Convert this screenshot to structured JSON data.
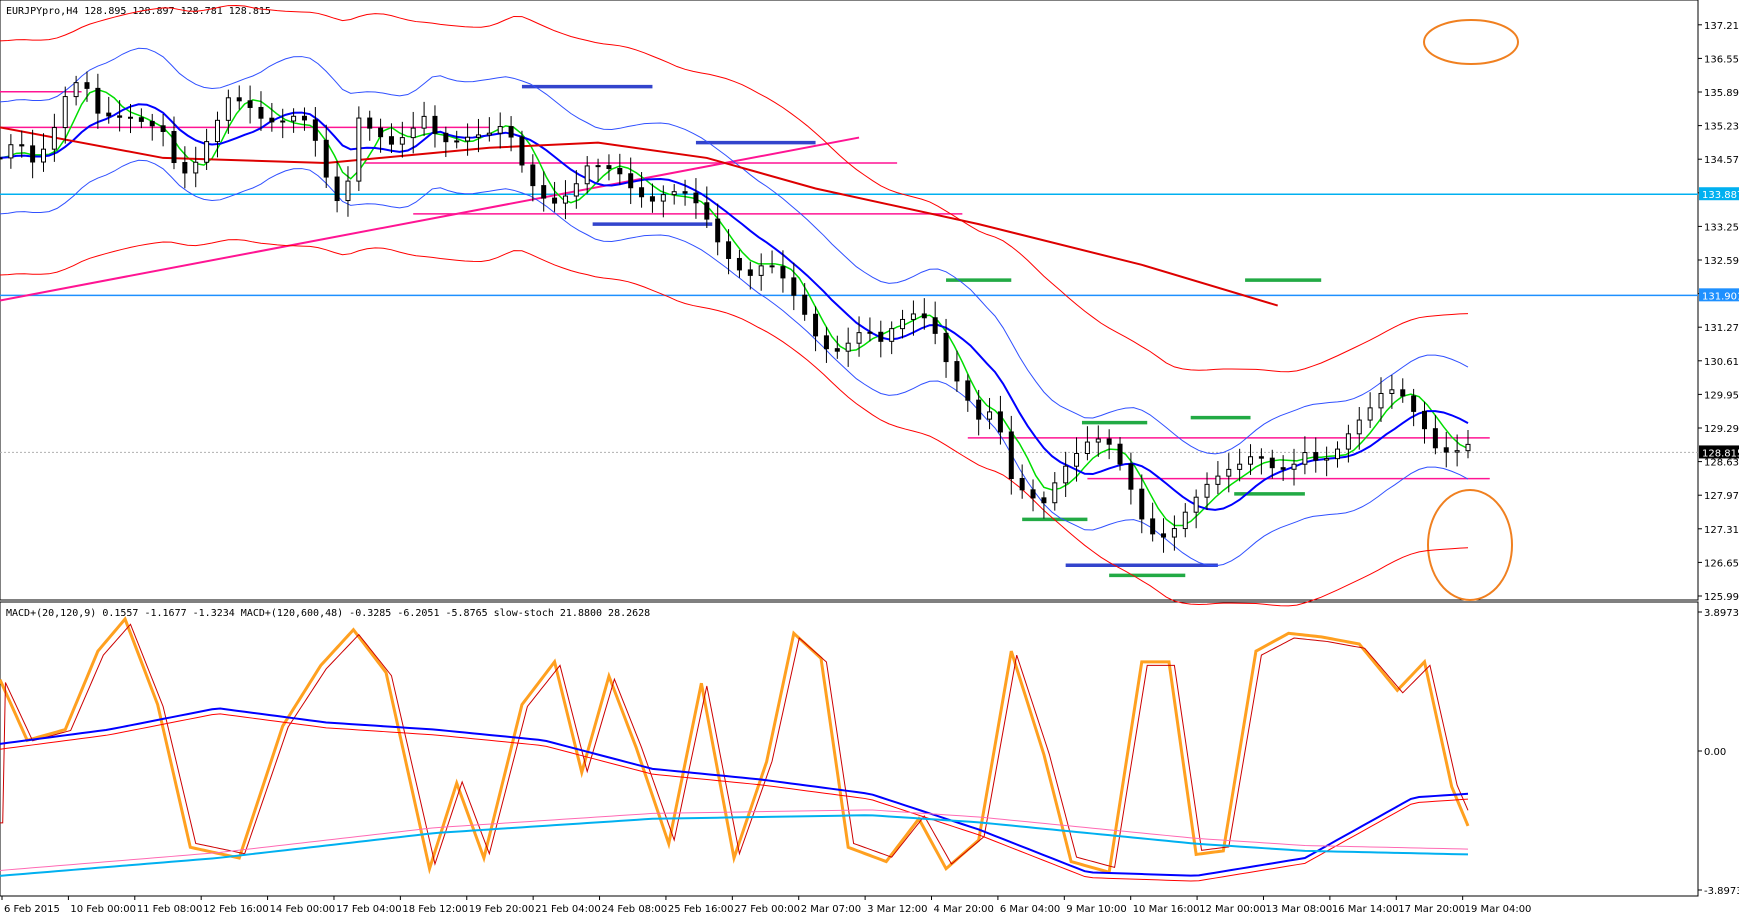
{
  "chart_data": {
    "type": "candlestick",
    "symbol_header": "EURJPYpro,H4  128.895 128.897 128.781 128.815",
    "price_axis": {
      "ylim": [
        125.995,
        137.545
      ],
      "ticks": [
        "137.215",
        "136.555",
        "135.895",
        "135.235",
        "134.575",
        "133.915",
        "133.255",
        "132.595",
        "131.935",
        "131.275",
        "130.615",
        "129.955",
        "129.295",
        "128.635",
        "127.975",
        "127.315",
        "126.655",
        "125.995"
      ],
      "current_price_label": "128.815",
      "hline_labels": [
        {
          "value": 133.887,
          "label": "133.887",
          "color": "#00b0f0"
        },
        {
          "value": 131.901,
          "label": "131.901",
          "color": "#1e90ff"
        }
      ]
    },
    "time_axis": {
      "labels": [
        "6 Feb 2015",
        "10 Feb 00:00",
        "11 Feb 08:00",
        "12 Feb 16:00",
        "14 Feb 00:00",
        "17 Feb 04:00",
        "18 Feb 12:00",
        "19 Feb 20:00",
        "21 Feb 04:00",
        "24 Feb 08:00",
        "25 Feb 16:00",
        "27 Feb 00:00",
        "2 Mar 07:00",
        "3 Mar 12:00",
        "4 Mar 20:00",
        "6 Mar 04:00",
        "9 Mar 10:00",
        "10 Mar 16:00",
        "12 Mar 00:00",
        "13 Mar 08:00",
        "16 Mar 14:00",
        "17 Mar 20:00",
        "19 Mar 04:00"
      ]
    },
    "price_path": [
      [
        0,
        134.6
      ],
      [
        6,
        134.9
      ],
      [
        12,
        134.4
      ],
      [
        18,
        134.8
      ],
      [
        24,
        135.8
      ],
      [
        30,
        136.3
      ],
      [
        36,
        135.6
      ],
      [
        42,
        135.5
      ],
      [
        48,
        135.4
      ],
      [
        54,
        135.2
      ],
      [
        60,
        135.0
      ],
      [
        66,
        134.1
      ],
      [
        72,
        134.5
      ],
      [
        78,
        135.2
      ],
      [
        84,
        135.9
      ],
      [
        90,
        135.8
      ],
      [
        96,
        135.4
      ],
      [
        102,
        135.2
      ],
      [
        108,
        135.3
      ],
      [
        114,
        135.2
      ],
      [
        120,
        134.2
      ],
      [
        126,
        133.6
      ],
      [
        132,
        135.5
      ],
      [
        138,
        135.2
      ],
      [
        144,
        134.9
      ],
      [
        150,
        135.0
      ],
      [
        156,
        135.3
      ],
      [
        162,
        134.8
      ],
      [
        168,
        134.9
      ],
      [
        174,
        135.1
      ],
      [
        180,
        135.2
      ],
      [
        186,
        135.4
      ],
      [
        192,
        134.5
      ],
      [
        198,
        133.8
      ],
      [
        204,
        133.6
      ],
      [
        210,
        133.8
      ],
      [
        216,
        134.4
      ],
      [
        222,
        134.5
      ],
      [
        228,
        134.4
      ],
      [
        234,
        134.0
      ],
      [
        240,
        133.8
      ],
      [
        246,
        133.9
      ],
      [
        252,
        133.8
      ],
      [
        258,
        133.5
      ],
      [
        264,
        132.9
      ],
      [
        270,
        132.5
      ],
      [
        276,
        132.4
      ],
      [
        282,
        132.7
      ],
      [
        288,
        132.3
      ],
      [
        294,
        131.7
      ],
      [
        300,
        131.0
      ],
      [
        306,
        130.6
      ],
      [
        312,
        130.9
      ],
      [
        318,
        131.3
      ],
      [
        324,
        131.1
      ],
      [
        330,
        131.5
      ],
      [
        336,
        131.6
      ],
      [
        342,
        131.4
      ],
      [
        348,
        130.5
      ],
      [
        354,
        129.9
      ],
      [
        360,
        129.4
      ],
      [
        366,
        129.7
      ],
      [
        372,
        128.4
      ],
      [
        378,
        128.1
      ],
      [
        384,
        127.9
      ],
      [
        390,
        128.4
      ],
      [
        396,
        128.7
      ],
      [
        402,
        129.0
      ],
      [
        408,
        128.9
      ],
      [
        414,
        128.4
      ],
      [
        420,
        127.6
      ],
      [
        426,
        127.2
      ],
      [
        432,
        127.4
      ],
      [
        438,
        127.8
      ],
      [
        444,
        128.1
      ],
      [
        450,
        128.3
      ],
      [
        456,
        128.5
      ],
      [
        462,
        128.8
      ],
      [
        468,
        128.6
      ],
      [
        474,
        128.6
      ],
      [
        480,
        128.9
      ],
      [
        486,
        128.6
      ],
      [
        492,
        128.8
      ],
      [
        498,
        129.2
      ],
      [
        504,
        129.6
      ],
      [
        510,
        130.1
      ],
      [
        516,
        130.0
      ],
      [
        522,
        129.6
      ],
      [
        528,
        129.0
      ],
      [
        534,
        128.8
      ],
      [
        540,
        128.9
      ]
    ],
    "annotations": [
      "red trendline",
      "blue support/resistance levels",
      "pink horizontal levels",
      "green levels",
      "orange circles"
    ],
    "indicator_header": "MACD+(20,120,9) 0.1557 -1.1677 -1.3234  MACD+(120,600,48) -0.3285 -6.2051 -5.8765  slow-stoch 21.8800 28.2628",
    "indicator_axis": {
      "ylim": [
        -3.8973,
        3.8973
      ],
      "ticks": [
        "3.8973",
        "0.00",
        "-3.8973"
      ]
    },
    "stoch_peaks_troughs": [
      [
        0,
        2.0
      ],
      [
        10,
        0.3
      ],
      [
        24,
        0.6
      ],
      [
        36,
        2.8
      ],
      [
        46,
        3.7
      ],
      [
        58,
        1.3
      ],
      [
        70,
        -2.7
      ],
      [
        88,
        -3.0
      ],
      [
        104,
        0.7
      ],
      [
        118,
        2.4
      ],
      [
        130,
        3.4
      ],
      [
        142,
        2.2
      ],
      [
        158,
        -3.3
      ],
      [
        168,
        -0.9
      ],
      [
        178,
        -3.0
      ],
      [
        192,
        1.3
      ],
      [
        204,
        2.5
      ],
      [
        214,
        -0.6
      ],
      [
        224,
        2.1
      ],
      [
        234,
        0.1
      ],
      [
        246,
        -2.6
      ],
      [
        258,
        1.9
      ],
      [
        270,
        -3.0
      ],
      [
        282,
        -0.3
      ],
      [
        292,
        3.3
      ],
      [
        302,
        2.6
      ],
      [
        312,
        -2.7
      ],
      [
        326,
        -3.1
      ],
      [
        338,
        -1.9
      ],
      [
        348,
        -3.3
      ],
      [
        360,
        -2.5
      ],
      [
        372,
        2.8
      ],
      [
        384,
        -0.1
      ],
      [
        394,
        -3.1
      ],
      [
        408,
        -3.4
      ],
      [
        420,
        2.5
      ],
      [
        430,
        2.5
      ],
      [
        440,
        -2.9
      ],
      [
        450,
        -2.8
      ],
      [
        462,
        2.8
      ],
      [
        474,
        3.3
      ],
      [
        486,
        3.2
      ],
      [
        500,
        3.0
      ],
      [
        514,
        1.7
      ],
      [
        524,
        2.5
      ],
      [
        534,
        -1.0
      ],
      [
        540,
        -2.1
      ]
    ],
    "macd_fast": [
      [
        0,
        0.2
      ],
      [
        40,
        0.6
      ],
      [
        80,
        1.2
      ],
      [
        120,
        0.8
      ],
      [
        160,
        0.6
      ],
      [
        200,
        0.3
      ],
      [
        240,
        -0.5
      ],
      [
        280,
        -0.8
      ],
      [
        320,
        -1.2
      ],
      [
        360,
        -2.2
      ],
      [
        400,
        -3.4
      ],
      [
        440,
        -3.5
      ],
      [
        480,
        -3.0
      ],
      [
        520,
        -1.3
      ],
      [
        540,
        -1.2
      ]
    ],
    "macd_slow": [
      [
        0,
        -3.5
      ],
      [
        80,
        -3.0
      ],
      [
        160,
        -2.3
      ],
      [
        240,
        -1.9
      ],
      [
        320,
        -1.8
      ],
      [
        360,
        -2.0
      ],
      [
        400,
        -2.3
      ],
      [
        440,
        -2.6
      ],
      [
        480,
        -2.8
      ],
      [
        540,
        -2.9
      ]
    ]
  }
}
